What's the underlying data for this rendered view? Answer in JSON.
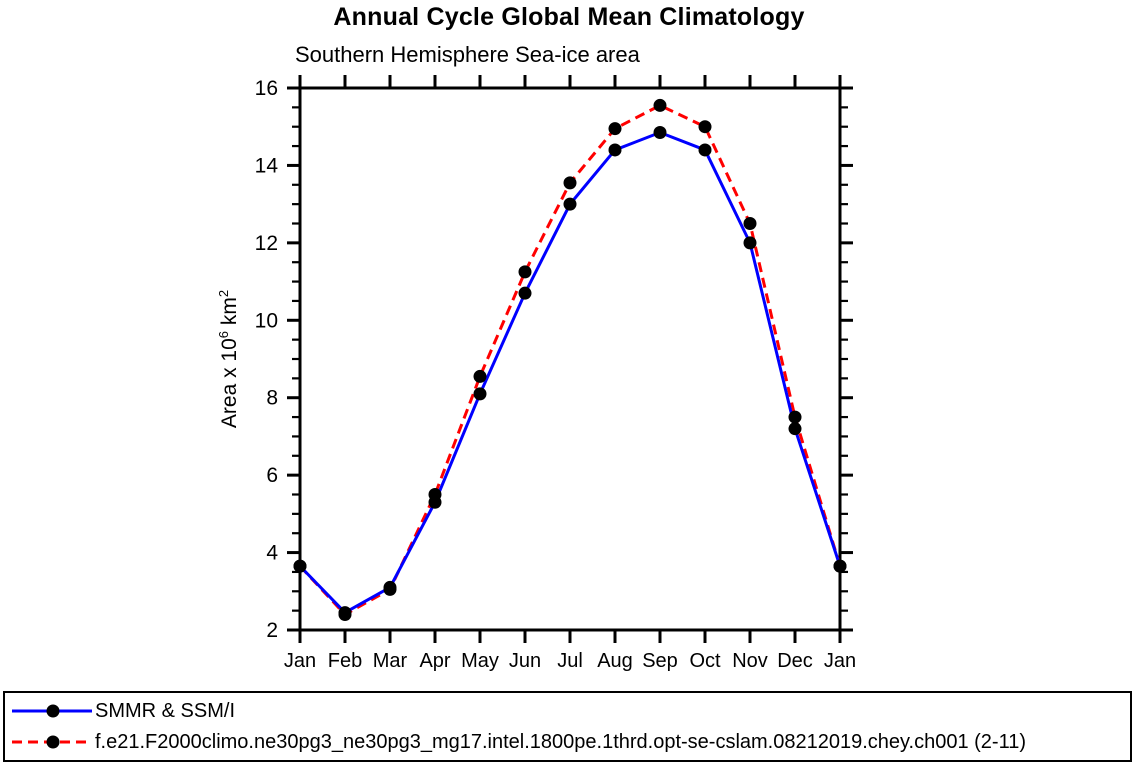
{
  "page": {
    "background": "#ffffff"
  },
  "header": {
    "title": "Annual Cycle Global Mean Climatology",
    "subtitle": "Southern Hemisphere Sea-ice area"
  },
  "chart_data": {
    "type": "line",
    "title": "Annual Cycle Global Mean Climatology",
    "subtitle": "Southern Hemisphere Sea-ice area",
    "ylabel": {
      "prefix": "Area x 10",
      "sup1": "6",
      "mid": " km",
      "sup2": "2"
    },
    "categories": [
      "Jan",
      "Feb",
      "Mar",
      "Apr",
      "May",
      "Jun",
      "Jul",
      "Aug",
      "Sep",
      "Oct",
      "Nov",
      "Dec",
      "Jan"
    ],
    "ylim": [
      2,
      16
    ],
    "ytick_major_step": 2,
    "ytick_minor_step": 0.5,
    "ytick_labels": [
      "2",
      "4",
      "6",
      "8",
      "10",
      "12",
      "14",
      "16"
    ],
    "grid": false,
    "legend_position": "bottom-left-box",
    "axis_color": "#000000",
    "marker_color": "#000000",
    "series": [
      {
        "name": "SMMR & SSM/I",
        "color": "#0000ff",
        "dash": "solid",
        "marker": "black-dot",
        "values": [
          3.65,
          2.45,
          3.1,
          5.3,
          8.1,
          10.7,
          13.0,
          14.4,
          14.85,
          14.4,
          12.0,
          7.2,
          3.65
        ]
      },
      {
        "name": "f.e21.F2000climo.ne30pg3_ne30pg3_mg17.intel.1800pe.1thrd.opt-se-cslam.08212019.chey.ch001 (2-11)",
        "color": "#ff0000",
        "dash": "dashed",
        "marker": "black-dot",
        "values": [
          3.65,
          2.4,
          3.05,
          5.5,
          8.55,
          11.25,
          13.55,
          14.95,
          15.55,
          15.0,
          12.5,
          7.5,
          3.65
        ]
      }
    ]
  }
}
